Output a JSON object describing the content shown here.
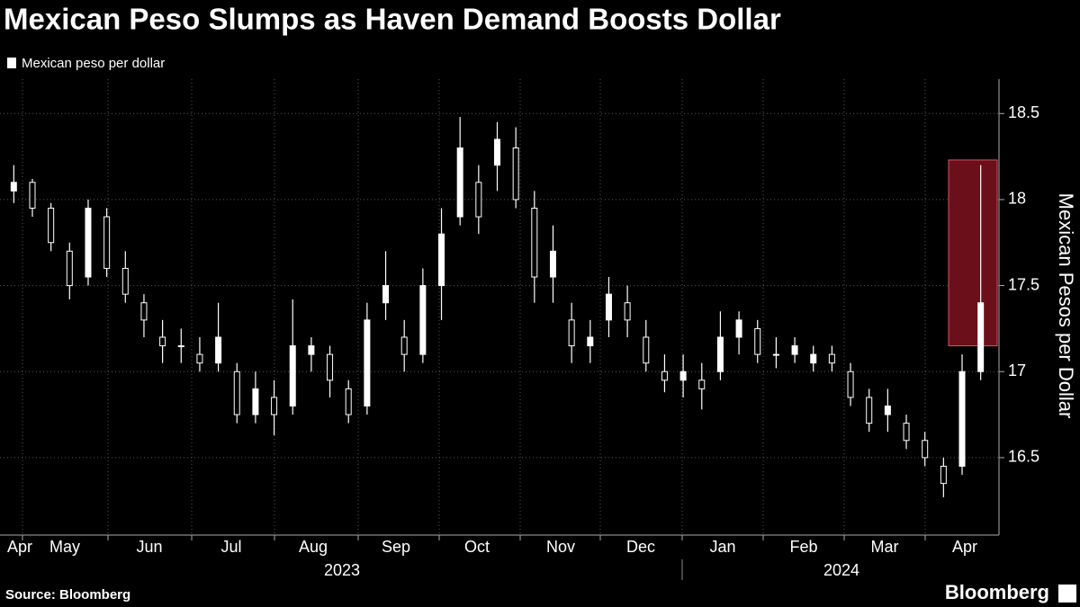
{
  "chart_data": {
    "type": "candlestick",
    "title": "Mexican Peso Slumps as Haven Demand Boosts Dollar",
    "legend": "Mexican peso per dollar",
    "y_label": "Mexican Pesos per Dollar",
    "source": "Source: Bloomberg",
    "brand": "Bloomberg",
    "color": "#ffffff",
    "highlight_color": "#6b0f1a",
    "categories": [
      "Apr",
      "May",
      "Jun",
      "Jul",
      "Aug",
      "Sep",
      "Oct",
      "Nov",
      "Dec",
      "Jan",
      "Feb",
      "Mar",
      "Apr"
    ],
    "years": [
      "2023",
      "2024"
    ],
    "open": [
      18.05,
      18.1,
      17.95,
      17.7,
      17.55,
      17.9,
      17.6,
      17.4,
      17.2,
      17.15,
      17.1,
      17.05,
      17.0,
      16.75,
      16.85,
      16.8,
      17.1,
      17.1,
      16.9,
      16.8,
      17.4,
      17.2,
      17.1,
      17.5,
      17.9,
      18.1,
      18.2,
      18.3,
      17.95,
      17.55,
      17.3,
      17.15,
      17.3,
      17.4,
      17.2,
      17.0,
      16.95,
      16.95,
      17.0,
      17.2,
      17.25,
      17.1,
      17.1,
      17.05,
      17.1,
      17.0,
      16.85,
      16.75,
      16.7,
      16.6,
      16.45,
      16.45,
      17.0
    ],
    "high": [
      18.2,
      18.12,
      17.98,
      17.75,
      18.0,
      17.95,
      17.7,
      17.45,
      17.3,
      17.25,
      17.2,
      17.4,
      17.05,
      17.0,
      16.95,
      17.42,
      17.2,
      17.15,
      16.95,
      17.4,
      17.7,
      17.3,
      17.6,
      17.95,
      18.48,
      18.2,
      18.45,
      18.42,
      18.05,
      17.85,
      17.4,
      17.3,
      17.55,
      17.5,
      17.3,
      17.1,
      17.1,
      17.05,
      17.35,
      17.35,
      17.3,
      17.2,
      17.2,
      17.15,
      17.15,
      17.05,
      16.9,
      16.9,
      16.75,
      16.65,
      16.5,
      17.1,
      18.2
    ],
    "low": [
      17.98,
      17.9,
      17.7,
      17.42,
      17.5,
      17.55,
      17.4,
      17.2,
      17.05,
      17.05,
      17.0,
      17.0,
      16.7,
      16.7,
      16.63,
      16.75,
      17.0,
      16.85,
      16.7,
      16.75,
      17.3,
      17.0,
      17.05,
      17.3,
      17.85,
      17.8,
      18.05,
      17.95,
      17.4,
      17.4,
      17.05,
      17.05,
      17.2,
      17.2,
      17.0,
      16.88,
      16.85,
      16.78,
      16.95,
      17.1,
      17.05,
      17.02,
      17.05,
      17.0,
      17.0,
      16.8,
      16.65,
      16.65,
      16.55,
      16.45,
      16.27,
      16.4,
      16.95
    ],
    "close": [
      18.1,
      17.95,
      17.75,
      17.5,
      17.95,
      17.6,
      17.45,
      17.3,
      17.15,
      17.15,
      17.05,
      17.2,
      16.75,
      16.9,
      16.75,
      17.15,
      17.15,
      16.95,
      16.75,
      17.3,
      17.5,
      17.1,
      17.5,
      17.8,
      18.3,
      17.9,
      18.35,
      18.0,
      17.55,
      17.7,
      17.15,
      17.2,
      17.45,
      17.3,
      17.05,
      16.95,
      17.0,
      16.9,
      17.2,
      17.3,
      17.1,
      17.1,
      17.15,
      17.1,
      17.05,
      16.85,
      16.7,
      16.8,
      16.6,
      16.5,
      16.35,
      17.0,
      17.4
    ],
    "highlight": [
      17.15,
      18.23
    ],
    "ylim": [
      16.05,
      18.7
    ],
    "yticks": [
      16.5,
      17.0,
      17.5,
      18.0,
      18.5
    ],
    "grid": true
  }
}
